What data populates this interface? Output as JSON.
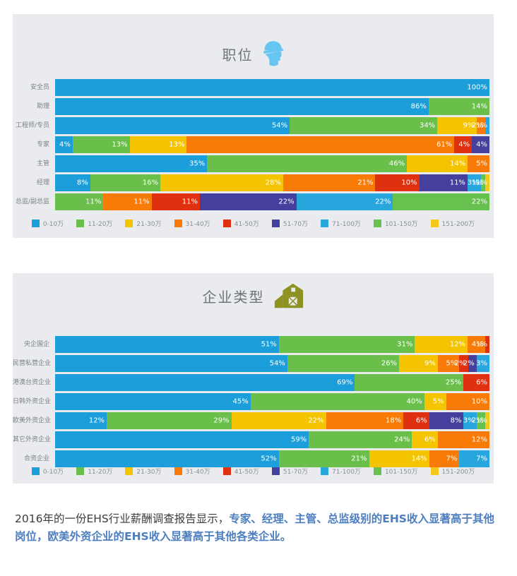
{
  "page": {
    "background": "#ffffff",
    "panel_background": "#e9ebee"
  },
  "palette": [
    "#1b9ed9",
    "#6abf4b",
    "#f5c400",
    "#f87a07",
    "#df3110",
    "#453f9e",
    "#27a7de",
    "#68c04f",
    "#f2c81d"
  ],
  "chart_data": [
    {
      "type": "bar",
      "orientation": "horizontal-stacked",
      "title": "职位",
      "icon": "helmet-icon",
      "icon_color": "#66c6f2",
      "value_suffix": "%",
      "xlim": [
        0,
        100
      ],
      "grid": false,
      "legend_position": "bottom",
      "legend": [
        "0-10万",
        "11-20万",
        "21-30万",
        "31-40万",
        "41-50万",
        "51-70万",
        "71-100万",
        "101-150万",
        "151-200万"
      ],
      "rows": [
        {
          "label": "安全员",
          "segments": [
            {
              "c": 0,
              "v": 100
            }
          ]
        },
        {
          "label": "助理",
          "segments": [
            {
              "c": 0,
              "v": 86
            },
            {
              "c": 1,
              "v": 14
            }
          ]
        },
        {
          "label": "工程师/专员",
          "segments": [
            {
              "c": 0,
              "v": 54
            },
            {
              "c": 1,
              "v": 34
            },
            {
              "c": 2,
              "v": 9
            },
            {
              "c": 3,
              "v": 2
            },
            {
              "c": 6,
              "v": 1
            }
          ]
        },
        {
          "label": "专家",
          "segments": [
            {
              "c": 0,
              "v": 4
            },
            {
              "c": 1,
              "v": 13
            },
            {
              "c": 2,
              "v": 13
            },
            {
              "c": 3,
              "v": 61
            },
            {
              "c": 4,
              "v": 4
            },
            {
              "c": 5,
              "v": 4
            }
          ]
        },
        {
          "label": "主管",
          "segments": [
            {
              "c": 0,
              "v": 35
            },
            {
              "c": 1,
              "v": 46
            },
            {
              "c": 2,
              "v": 14
            },
            {
              "c": 3,
              "v": 5
            }
          ]
        },
        {
          "label": "经理",
          "segments": [
            {
              "c": 0,
              "v": 8
            },
            {
              "c": 1,
              "v": 16
            },
            {
              "c": 2,
              "v": 28
            },
            {
              "c": 3,
              "v": 21
            },
            {
              "c": 4,
              "v": 10
            },
            {
              "c": 5,
              "v": 11
            },
            {
              "c": 6,
              "v": 3
            },
            {
              "c": 7,
              "v": 1
            },
            {
              "c": 8,
              "v": 1
            }
          ]
        },
        {
          "label": "总监/副总监",
          "segments": [
            {
              "c": 1,
              "v": 11
            },
            {
              "c": 3,
              "v": 11
            },
            {
              "c": 4,
              "v": 11
            },
            {
              "c": 5,
              "v": 22
            },
            {
              "c": 6,
              "v": 22
            },
            {
              "c": 7,
              "v": 22
            }
          ]
        }
      ]
    },
    {
      "type": "bar",
      "orientation": "horizontal-stacked",
      "title": "企业类型",
      "icon": "barn-icon",
      "icon_color": "#8e9222",
      "value_suffix": "%",
      "xlim": [
        0,
        100
      ],
      "grid": false,
      "legend_position": "bottom",
      "legend": [
        "0-10万",
        "11-20万",
        "21-30万",
        "31-40万",
        "41-50万",
        "51-70万",
        "71-100万",
        "101-150万",
        "151-200万"
      ],
      "rows": [
        {
          "label": "央企国企",
          "segments": [
            {
              "c": 0,
              "v": 51
            },
            {
              "c": 1,
              "v": 31
            },
            {
              "c": 2,
              "v": 12
            },
            {
              "c": 3,
              "v": 4
            },
            {
              "c": 4,
              "v": 1
            }
          ]
        },
        {
          "label": "民营私营企业",
          "segments": [
            {
              "c": 0,
              "v": 54
            },
            {
              "c": 1,
              "v": 26
            },
            {
              "c": 2,
              "v": 9
            },
            {
              "c": 3,
              "v": 5
            },
            {
              "c": 4,
              "v": 2
            },
            {
              "c": 5,
              "v": 2
            },
            {
              "c": 6,
              "v": 3
            }
          ]
        },
        {
          "label": "港澳台资企业",
          "segments": [
            {
              "c": 0,
              "v": 69
            },
            {
              "c": 1,
              "v": 25
            },
            {
              "c": 4,
              "v": 6
            }
          ]
        },
        {
          "label": "日韩外资企业",
          "segments": [
            {
              "c": 0,
              "v": 45
            },
            {
              "c": 1,
              "v": 40
            },
            {
              "c": 2,
              "v": 5
            },
            {
              "c": 3,
              "v": 10
            }
          ]
        },
        {
          "label": "欧美外资企业",
          "segments": [
            {
              "c": 0,
              "v": 12
            },
            {
              "c": 1,
              "v": 29
            },
            {
              "c": 2,
              "v": 22
            },
            {
              "c": 3,
              "v": 18
            },
            {
              "c": 4,
              "v": 6
            },
            {
              "c": 5,
              "v": 8
            },
            {
              "c": 6,
              "v": 3
            },
            {
              "c": 7,
              "v": 2
            },
            {
              "c": 8,
              "v": 1
            }
          ]
        },
        {
          "label": "其它外资企业",
          "segments": [
            {
              "c": 0,
              "v": 59
            },
            {
              "c": 1,
              "v": 24
            },
            {
              "c": 2,
              "v": 6
            },
            {
              "c": 3,
              "v": 12
            }
          ]
        },
        {
          "label": "合资企业",
          "segments": [
            {
              "c": 0,
              "v": 52
            },
            {
              "c": 1,
              "v": 21
            },
            {
              "c": 2,
              "v": 14
            },
            {
              "c": 3,
              "v": 7
            },
            {
              "c": 6,
              "v": 7
            }
          ]
        }
      ]
    }
  ],
  "footer": {
    "normal_text": "2016年的一份EHS行业薪酬调查报告显示，",
    "highlight_text": "专家、经理、主管、总监级别的EHS收入显著高于其他岗位，欧美外资企业的EHS收入显著高于其他各类企业。",
    "highlight_color": "#4d7ec0",
    "normal_color": "#3c3c3c"
  }
}
